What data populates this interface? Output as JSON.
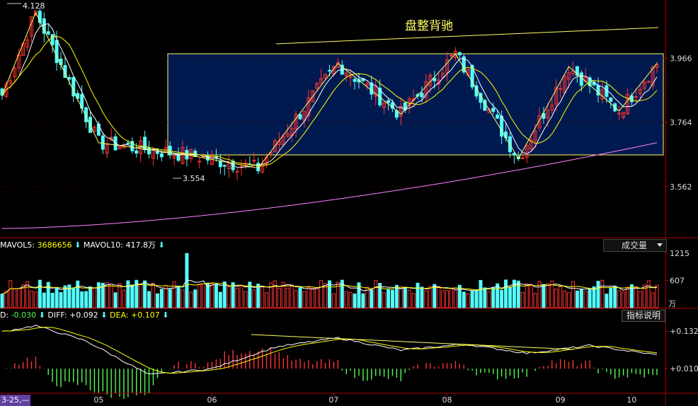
{
  "annotation_text": "盘整背驰",
  "price_labels": {
    "high": "4.128",
    "low": "3.554"
  },
  "price_ticks": [
    "3.966",
    "3.764",
    "3.562"
  ],
  "volume_ticks": [
    "1215",
    "607"
  ],
  "volume_unit": "万",
  "macd_ticks": [
    "+0.132",
    "+0.010"
  ],
  "volume_header": {
    "mavol5_label": "MAVOL5: ",
    "mavol5_value": "3686656",
    "mavol10_label": "MAVOL10: ",
    "mavol10_value": "417.8万"
  },
  "indicator_header": {
    "macd_label": "D: ",
    "macd_value": "-0.030",
    "diff_label": "DIFF: ",
    "diff_value": "+0.092",
    "dea_label": "DEA: ",
    "dea_value": "+0.107"
  },
  "volume_dropdown": {
    "label": "成交量"
  },
  "indicator_help_button": {
    "label": "指标说明"
  },
  "date_cursor_label": "3-25,—",
  "x_ticks": [
    "05",
    "06",
    "07",
    "08",
    "09",
    "10"
  ],
  "colors": {
    "up": "#ff3333",
    "down": "#54fcfc",
    "ma5": "#ffffff",
    "ma10": "#ffff00",
    "ma_long": "#ff80ff",
    "box_fill": "#001a50",
    "box_stroke": "#ffff66",
    "axis": "#b00000",
    "dif": "#ffffff",
    "dea": "#ffff00"
  },
  "chart_data": [
    {
      "type": "candlestick",
      "x": "trading days (~157 sessions)",
      "x_tick_labels": [
        "05",
        "06",
        "07",
        "08",
        "09",
        "10"
      ],
      "y_ticks": [
        3.966,
        3.764,
        3.562
      ],
      "ylim": [
        3.41,
        4.145
      ],
      "marked_high": 4.128,
      "marked_low": 3.554,
      "annotation": "盘整背驰",
      "consolidation_box": [
        3.62,
        3.975
      ],
      "pivots_x": [
        0,
        8,
        23,
        45,
        61,
        80,
        95,
        108,
        123,
        135,
        147,
        156
      ],
      "pivots_close": [
        3.85,
        4.11,
        3.7,
        3.66,
        3.62,
        3.95,
        3.79,
        3.98,
        3.65,
        3.94,
        3.8,
        3.95
      ],
      "ma_long_start": 3.43,
      "ma_long_end": 3.7
    },
    {
      "type": "bar",
      "name": "volume",
      "y_ticks": [
        1215,
        607
      ],
      "unit": "万",
      "avg_volume": 430,
      "spike_volume": 1210
    },
    {
      "type": "bar",
      "name": "MACD",
      "y_ticks": [
        0.132,
        0.01
      ],
      "ylim": [
        -0.07,
        0.16
      ],
      "macd_pivots_x": [
        0,
        8,
        20,
        35,
        50,
        65,
        80,
        95,
        110,
        125,
        140,
        156
      ],
      "macd_pivots_y": [
        0.09,
        0.11,
        0.06,
        -0.05,
        -0.03,
        0.04,
        0.07,
        0.03,
        0.05,
        0.02,
        0.045,
        0.015
      ],
      "diff_last": 0.092,
      "dea_last": 0.107,
      "macd_last": -0.03
    }
  ]
}
